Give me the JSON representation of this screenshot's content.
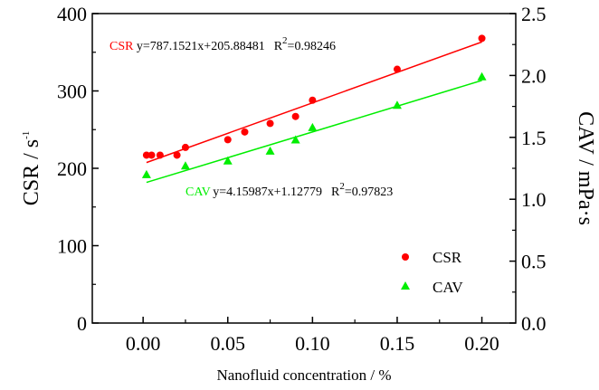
{
  "chart_data": {
    "type": "scatter",
    "xlabel": "Nanofluid concentration / %",
    "ylabel_left": {
      "base": "CSR / s",
      "sup": "-1"
    },
    "ylabel_right": "CAV / mPa·s",
    "xlim": [
      -0.03,
      0.22
    ],
    "ylim_left": [
      0,
      400
    ],
    "ylim_right": [
      0.0,
      2.5
    ],
    "x_ticks": [
      "0.00",
      "0.05",
      "0.10",
      "0.15",
      "0.20"
    ],
    "x_tick_values": [
      0.0,
      0.05,
      0.1,
      0.15,
      0.2
    ],
    "y_left_ticks": [
      "0",
      "100",
      "200",
      "300",
      "400"
    ],
    "y_left_tick_values": [
      0,
      100,
      200,
      300,
      400
    ],
    "y_right_ticks": [
      "0.0",
      "0.5",
      "1.0",
      "1.5",
      "2.0",
      "2.5"
    ],
    "y_right_tick_values": [
      0.0,
      0.5,
      1.0,
      1.5,
      2.0,
      2.5
    ],
    "grid": false,
    "legend_position": "bottom-right",
    "series": [
      {
        "name": "CSR",
        "axis": "left",
        "marker": "circle",
        "color": "#ff0000",
        "x": [
          0.002,
          0.005,
          0.01,
          0.02,
          0.025,
          0.05,
          0.06,
          0.075,
          0.09,
          0.1,
          0.15,
          0.2
        ],
        "y": [
          217,
          217,
          217,
          217,
          227,
          237,
          247,
          258,
          267,
          288,
          328,
          368
        ],
        "fit": {
          "slope": 787.1521,
          "intercept": 205.88481,
          "x_range": [
            0.002,
            0.2
          ],
          "label": "CSR",
          "equation": "y=787.1521x+205.88481",
          "r2_prefix": "R",
          "r2_sup": "2",
          "r2_value": "=0.98246"
        }
      },
      {
        "name": "CAV",
        "axis": "right",
        "marker": "triangle",
        "color": "#00ee00",
        "x": [
          0.002,
          0.025,
          0.05,
          0.075,
          0.09,
          0.1,
          0.15,
          0.2
        ],
        "y": [
          1.2,
          1.27,
          1.31,
          1.39,
          1.48,
          1.58,
          1.76,
          1.99
        ],
        "fit": {
          "slope": 4.15987,
          "intercept": 1.12779,
          "x_range": [
            0.002,
            0.2
          ],
          "label": "CAV",
          "equation": "y=4.15987x+1.12779",
          "r2_prefix": "R",
          "r2_sup": "2",
          "r2_value": "=0.97823"
        }
      }
    ]
  }
}
